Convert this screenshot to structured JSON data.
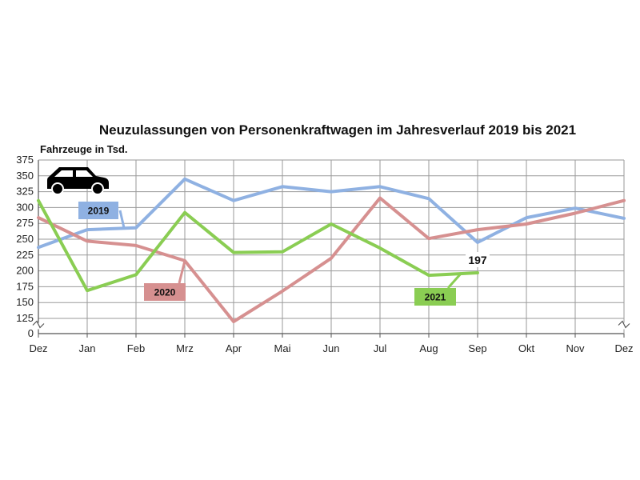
{
  "chart_data": {
    "type": "line",
    "title": "Neuzulassungen von Personenkraftwagen im Jahresverlauf 2019 bis 2021",
    "ylabel": "Fahrzeuge in Tsd.",
    "xlabel": "",
    "categories": [
      "Dez",
      "Jan",
      "Feb",
      "Mrz",
      "Apr",
      "Mai",
      "Jun",
      "Jul",
      "Aug",
      "Sep",
      "Okt",
      "Nov",
      "Dez"
    ],
    "y_ticks": [
      0,
      125,
      150,
      175,
      200,
      225,
      250,
      275,
      300,
      325,
      350,
      375
    ],
    "ylim": [
      0,
      375
    ],
    "axis_break": true,
    "grid": true,
    "series": [
      {
        "name": "2019",
        "color": "#8fb1e2",
        "values": [
          237,
          265,
          268,
          345,
          311,
          333,
          325,
          333,
          314,
          245,
          284,
          299,
          283
        ]
      },
      {
        "name": "2020",
        "color": "#d69090",
        "values": [
          284,
          247,
          240,
          216,
          120,
          168,
          220,
          315,
          251,
          265,
          274,
          291,
          311
        ]
      },
      {
        "name": "2021",
        "color": "#8acd53",
        "values": [
          311,
          169,
          194,
          292,
          229,
          230,
          274,
          236,
          193,
          197,
          null,
          null,
          null
        ]
      }
    ],
    "annotations": [
      {
        "text": "197",
        "series": "2021",
        "category": "Sep"
      }
    ],
    "icon": "car-icon"
  }
}
